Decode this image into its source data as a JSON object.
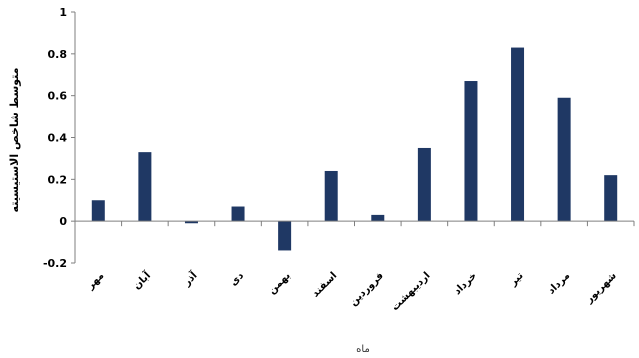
{
  "chart_data": {
    "type": "bar",
    "categories": [
      "مهر",
      "آبان",
      "آذر",
      "دی",
      "بهمن",
      "اسفند",
      "فروردین",
      "اردیبهشت",
      "خرداد",
      "تیر",
      "مرداد",
      "شهریور"
    ],
    "values": [
      0.1,
      0.33,
      -0.01,
      0.07,
      -0.14,
      0.24,
      0.03,
      0.35,
      0.67,
      0.83,
      0.59,
      0.22
    ],
    "ylabel": "متوسط شاخص الاستیسیته",
    "xlabel": "ماه",
    "ylim": [
      -0.2,
      1
    ],
    "yticks": [
      -0.2,
      0,
      0.2,
      0.4,
      0.6,
      0.8,
      1
    ],
    "ytick_labels": [
      "-0.2",
      "0",
      "0.2",
      "0.4",
      "0.6",
      "0.8",
      "1"
    ],
    "bar_color": "#1f3864",
    "grid": false,
    "legend": "none"
  }
}
